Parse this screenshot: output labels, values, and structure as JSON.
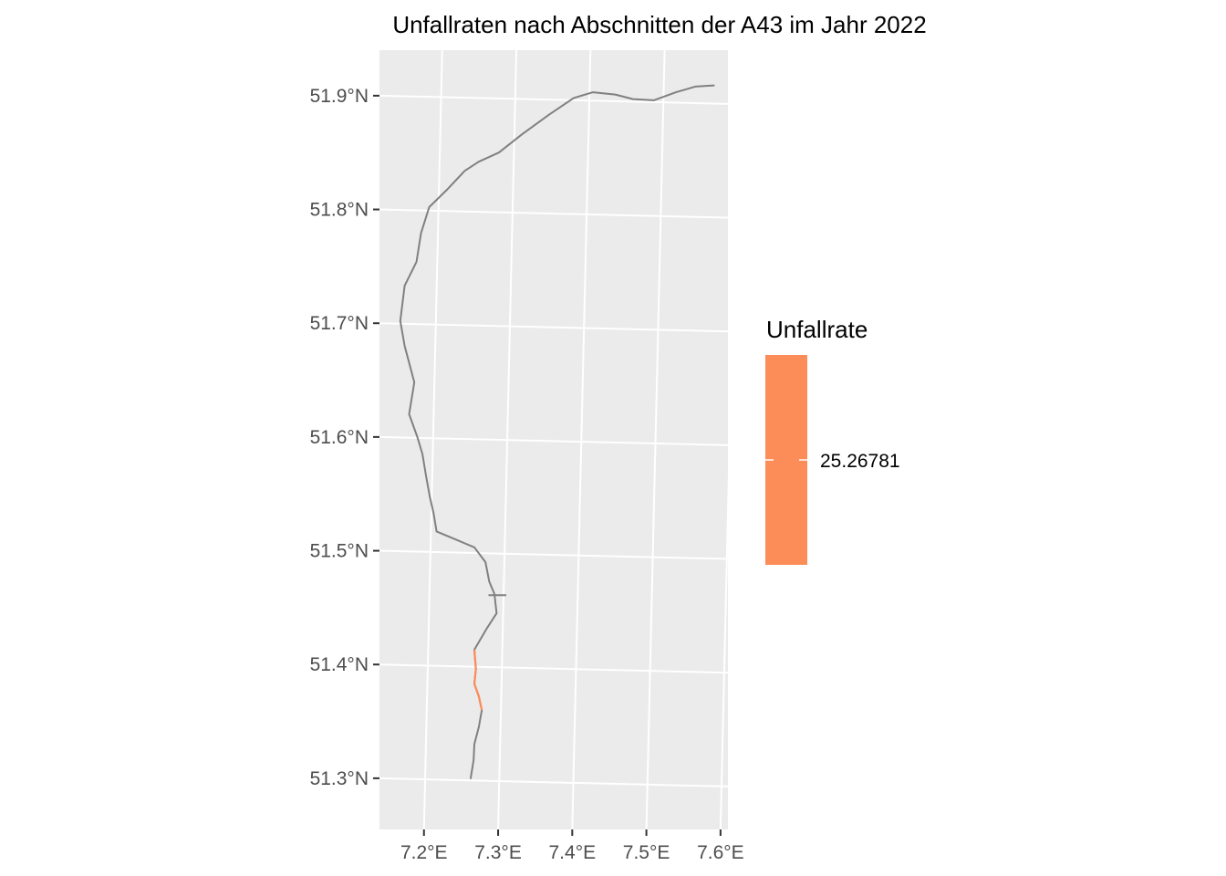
{
  "chart_data": {
    "type": "map",
    "title": "Unfallraten nach Abschnitten der A43 im Jahr 2022",
    "x_ticks": [
      "7.2°E",
      "7.3°E",
      "7.4°E",
      "7.5°E",
      "7.6°E"
    ],
    "x_tick_values": [
      7.2,
      7.3,
      7.4,
      7.5,
      7.6
    ],
    "y_ticks": [
      "51.3°N",
      "51.4°N",
      "51.5°N",
      "51.6°N",
      "51.7°N",
      "51.8°N",
      "51.9°N"
    ],
    "y_tick_values": [
      51.3,
      51.4,
      51.5,
      51.6,
      51.7,
      51.8,
      51.9
    ],
    "xlim": [
      7.14,
      7.61
    ],
    "ylim": [
      51.255,
      51.94
    ],
    "grid": true,
    "legend": {
      "title": "Unfallrate",
      "position": "right",
      "color": "#fc8d59",
      "label": "25.26781"
    },
    "route_color": "#808080",
    "panel_color": "#ebebeb",
    "route": [
      [
        7.263,
        51.3
      ],
      [
        7.267,
        51.316
      ],
      [
        7.268,
        51.33
      ],
      [
        7.274,
        51.345
      ],
      [
        7.278,
        51.36
      ],
      [
        7.274,
        51.372
      ],
      [
        7.268,
        51.383
      ],
      [
        7.27,
        51.396
      ],
      [
        7.268,
        51.413
      ],
      [
        7.285,
        51.432
      ],
      [
        7.298,
        51.445
      ],
      [
        7.295,
        51.462
      ],
      [
        7.288,
        51.473
      ],
      [
        7.283,
        51.49
      ],
      [
        7.268,
        51.503
      ],
      [
        7.235,
        51.512
      ],
      [
        7.217,
        51.517
      ],
      [
        7.213,
        51.533
      ],
      [
        7.208,
        51.547
      ],
      [
        7.203,
        51.565
      ],
      [
        7.198,
        51.585
      ],
      [
        7.191,
        51.6
      ],
      [
        7.18,
        51.62
      ],
      [
        7.187,
        51.648
      ],
      [
        7.174,
        51.68
      ],
      [
        7.168,
        51.702
      ],
      [
        7.174,
        51.733
      ],
      [
        7.19,
        51.754
      ],
      [
        7.196,
        51.779
      ],
      [
        7.207,
        51.802
      ],
      [
        7.232,
        51.818
      ],
      [
        7.255,
        51.834
      ],
      [
        7.274,
        51.842
      ],
      [
        7.301,
        51.85
      ],
      [
        7.332,
        51.866
      ],
      [
        7.368,
        51.883
      ],
      [
        7.402,
        51.898
      ],
      [
        7.428,
        51.903
      ],
      [
        7.458,
        51.901
      ],
      [
        7.482,
        51.897
      ],
      [
        7.51,
        51.896
      ],
      [
        7.54,
        51.903
      ],
      [
        7.566,
        51.908
      ],
      [
        7.591,
        51.909
      ]
    ],
    "highlighted_segment": {
      "value": 25.26781,
      "points": [
        [
          7.268,
          51.413
        ],
        [
          7.27,
          51.396
        ],
        [
          7.268,
          51.383
        ],
        [
          7.274,
          51.372
        ],
        [
          7.278,
          51.36
        ]
      ]
    },
    "spur": [
      [
        7.287,
        51.461
      ],
      [
        7.311,
        51.461
      ]
    ]
  }
}
